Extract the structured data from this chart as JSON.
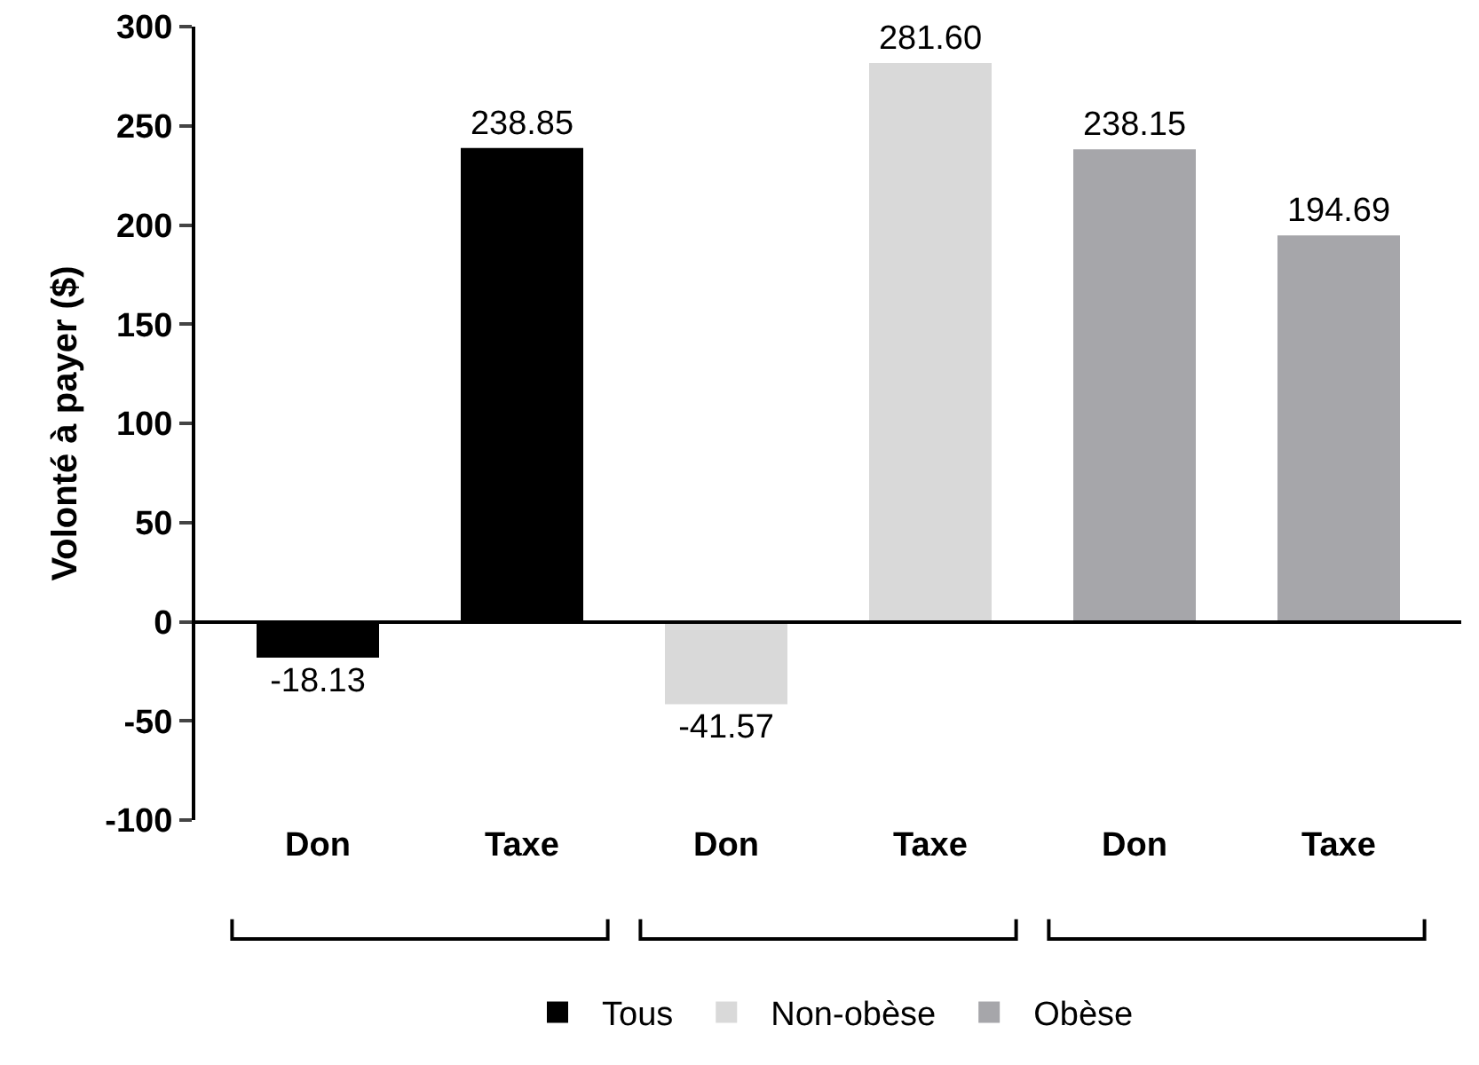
{
  "chart_data": {
    "type": "bar",
    "ylabel": "Volonté à payer ($)",
    "categories": [
      "Don",
      "Taxe",
      "Don",
      "Taxe",
      "Don",
      "Taxe"
    ],
    "series": [
      {
        "name": "Tous",
        "color": "#000000",
        "values": [
          -18.13,
          238.85,
          null,
          null,
          null,
          null
        ],
        "value_labels": [
          "-18.13",
          "238.85",
          null,
          null,
          null,
          null
        ]
      },
      {
        "name": "Non-obèse",
        "color": "#d9d9d9",
        "values": [
          null,
          null,
          -41.57,
          281.6,
          null,
          null
        ],
        "value_labels": [
          null,
          null,
          "-41.57",
          "281.60",
          null,
          null
        ]
      },
      {
        "name": "Obèse",
        "color": "#a6a6aa",
        "values": [
          null,
          null,
          null,
          null,
          238.15,
          194.69
        ],
        "value_labels": [
          null,
          null,
          null,
          null,
          "238.15",
          "194.69"
        ]
      }
    ],
    "ylim": [
      -100,
      300
    ],
    "yticks": [
      -100,
      -50,
      0,
      50,
      100,
      150,
      200,
      250,
      300
    ],
    "legend": "bottom"
  }
}
